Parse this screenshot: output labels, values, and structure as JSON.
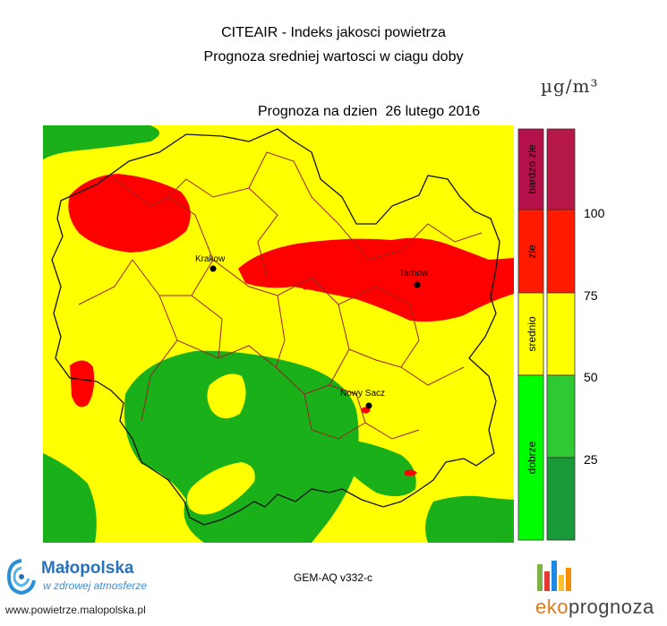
{
  "header": {
    "title": "CITEAIR - Indeks jakosci powietrza",
    "subtitle": "Prognoza sredniej wartosci w ciagu doby",
    "forecast_prefix": "Prognoza na dzien",
    "forecast_date": "26 lutego 2016",
    "unit": "µg/m³"
  },
  "map": {
    "cities": [
      {
        "name": "Krakow"
      },
      {
        "name": "Tarnow"
      },
      {
        "name": "Nowy Sacz"
      }
    ],
    "colors": {
      "good": "#19b01a",
      "moderate": "#ffff00",
      "bad": "#ff0000",
      "very_bad": "#b5124c",
      "boundary_admin": "#9b2222",
      "boundary_region": "#000000"
    }
  },
  "legend": {
    "categories": [
      {
        "label": "bardzo zle",
        "color": "#b5124c",
        "colorBar": "#b7184a"
      },
      {
        "label": "zle",
        "color": "#ff1a00",
        "colorBar": "#ff1a00"
      },
      {
        "label": "srednio",
        "color": "#ffff00",
        "colorBar": "#ffff00"
      },
      {
        "label": "dobrze",
        "color": "#00ff00",
        "colorBar": "#22b52a"
      }
    ],
    "thresholds": [
      "100",
      "75",
      "50",
      "25"
    ],
    "green_shades": [
      "#2ec933",
      "#22aa2a",
      "#179a37"
    ]
  },
  "footer": {
    "brand_name": "Małopolska",
    "brand_tagline": "w zdrowej atmosferze",
    "brand_url": "www.powietrze.malopolska.pl",
    "model": "GEM-AQ v332-c",
    "eko_prefix": "eko",
    "eko_suffix": "prognoza"
  }
}
